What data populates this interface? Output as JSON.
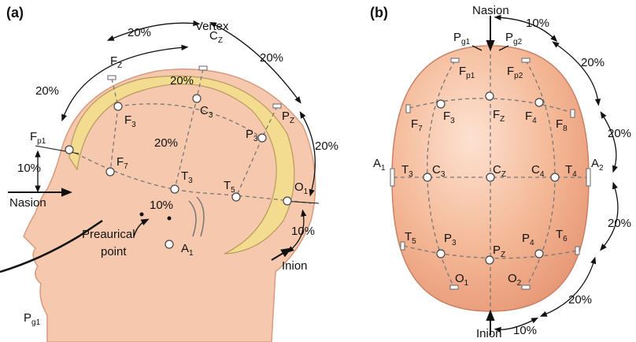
{
  "panel_a": {
    "label": "(a)",
    "landmarks": [
      "Vertex",
      "Nasion",
      "Inion",
      "Preaurical",
      "point"
    ],
    "electrodes": [
      {
        "base": "F",
        "sub": "Z"
      },
      {
        "base": "C",
        "sub": "Z"
      },
      {
        "base": "P",
        "sub": "Z"
      },
      {
        "base": "F",
        "sub": "p1"
      },
      {
        "base": "F",
        "sub": "3"
      },
      {
        "base": "C",
        "sub": "3"
      },
      {
        "base": "P",
        "sub": "3"
      },
      {
        "base": "O",
        "sub": "1"
      },
      {
        "base": "F",
        "sub": "7"
      },
      {
        "base": "T",
        "sub": "3"
      },
      {
        "base": "T",
        "sub": "5"
      },
      {
        "base": "A",
        "sub": "1"
      },
      {
        "base": "P",
        "sub": "g1"
      }
    ],
    "percentages": [
      "20%",
      "20%",
      "20%",
      "20%",
      "20%",
      "20%",
      "10%",
      "10%",
      "10%"
    ]
  },
  "panel_b": {
    "label": "(b)",
    "landmarks": [
      "Nasion",
      "Inion"
    ],
    "electrodes": [
      {
        "base": "P",
        "sub": "g1"
      },
      {
        "base": "P",
        "sub": "g2"
      },
      {
        "base": "F",
        "sub": "p1"
      },
      {
        "base": "F",
        "sub": "p2"
      },
      {
        "base": "F",
        "sub": "7"
      },
      {
        "base": "F",
        "sub": "3"
      },
      {
        "base": "F",
        "sub": "Z"
      },
      {
        "base": "F",
        "sub": "4"
      },
      {
        "base": "F",
        "sub": "8"
      },
      {
        "base": "A",
        "sub": "1"
      },
      {
        "base": "T",
        "sub": "3"
      },
      {
        "base": "C",
        "sub": "3"
      },
      {
        "base": "C",
        "sub": "Z"
      },
      {
        "base": "C",
        "sub": "4"
      },
      {
        "base": "T",
        "sub": "4"
      },
      {
        "base": "A",
        "sub": "2"
      },
      {
        "base": "T",
        "sub": "5"
      },
      {
        "base": "P",
        "sub": "3"
      },
      {
        "base": "P",
        "sub": "Z"
      },
      {
        "base": "P",
        "sub": "4"
      },
      {
        "base": "T",
        "sub": "6"
      },
      {
        "base": "O",
        "sub": "1"
      },
      {
        "base": "O",
        "sub": "2"
      }
    ],
    "percentages": [
      "10%",
      "20%",
      "20%",
      "20%",
      "20%",
      "10%"
    ]
  }
}
